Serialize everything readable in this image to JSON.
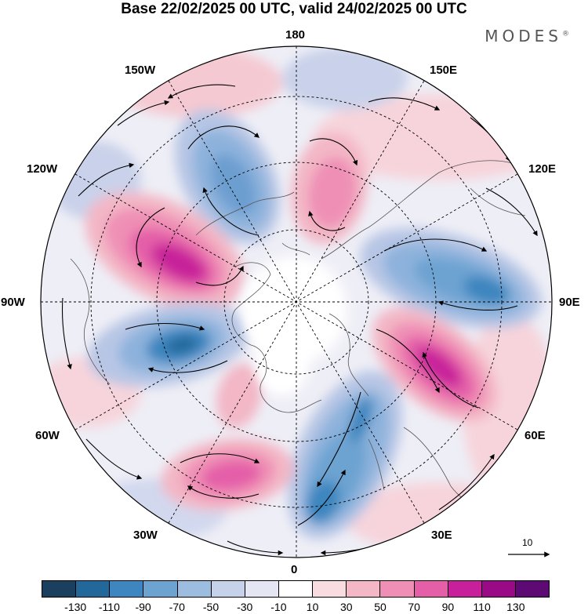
{
  "title": "Base 22/02/2025 00 UTC, valid 24/02/2025 00 UTC",
  "brand": "MODES",
  "brand_mark": "®",
  "longitude_labels": {
    "top": "180",
    "bottom": "0",
    "left": "90W",
    "right": "90E",
    "upper_left_1": "150W",
    "upper_left_2": "120W",
    "upper_right_1": "150E",
    "upper_right_2": "120E",
    "lower_left_1": "60W",
    "lower_left_2": "30W",
    "lower_right_1": "60E",
    "lower_right_2": "30E"
  },
  "vector_scale": "10",
  "colorbar": {
    "colors": [
      "#1b3f5e",
      "#23689a",
      "#3d86bf",
      "#6da3d1",
      "#9dbde0",
      "#c6d1ea",
      "#e5e6f4",
      "#ffffff",
      "#f8dce0",
      "#f3b7c6",
      "#ef8fb5",
      "#e45fa8",
      "#c8209a",
      "#9a0a86",
      "#5e0a74"
    ],
    "ticks": [
      "-130",
      "-110",
      "-90",
      "-70",
      "-50",
      "-30",
      "-10",
      "10",
      "30",
      "50",
      "70",
      "90",
      "110",
      "130"
    ]
  }
}
